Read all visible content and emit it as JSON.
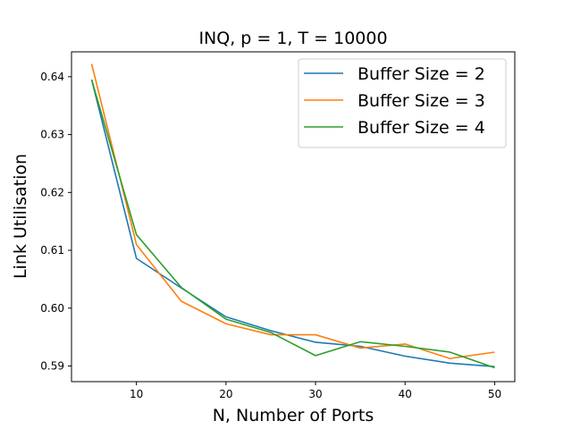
{
  "chart_data": {
    "type": "line",
    "title": "INQ, p = 1, T = 10000",
    "xlabel": "N, Number of Ports",
    "ylabel": "Link Utilisation",
    "x": [
      5,
      10,
      15,
      20,
      25,
      30,
      35,
      40,
      45,
      50
    ],
    "xlim": [
      2.75,
      52.25
    ],
    "ylim": [
      0.5873,
      0.6443
    ],
    "xticks": [
      10,
      20,
      30,
      40,
      50
    ],
    "yticks": [
      0.59,
      0.6,
      0.61,
      0.62,
      0.63,
      0.64
    ],
    "xtick_labels": [
      "10",
      "20",
      "30",
      "40",
      "50"
    ],
    "ytick_labels": [
      "0.59",
      "0.60",
      "0.61",
      "0.62",
      "0.63",
      "0.64"
    ],
    "grid": false,
    "legend_position": "top-right",
    "series": [
      {
        "name": "Buffer Size = 2",
        "color": "#1f77b4",
        "values": [
          0.6395,
          0.6086,
          0.6035,
          0.5985,
          0.5961,
          0.5941,
          0.5934,
          0.5917,
          0.5905,
          0.5899
        ]
      },
      {
        "name": "Buffer Size = 3",
        "color": "#ff7f0e",
        "values": [
          0.6422,
          0.611,
          0.6012,
          0.5973,
          0.5954,
          0.5954,
          0.5931,
          0.5938,
          0.5913,
          0.5924
        ]
      },
      {
        "name": "Buffer Size = 4",
        "color": "#2ca02c",
        "values": [
          0.6395,
          0.6127,
          0.6036,
          0.5981,
          0.5958,
          0.5918,
          0.5942,
          0.5934,
          0.5924,
          0.5897
        ]
      }
    ]
  }
}
